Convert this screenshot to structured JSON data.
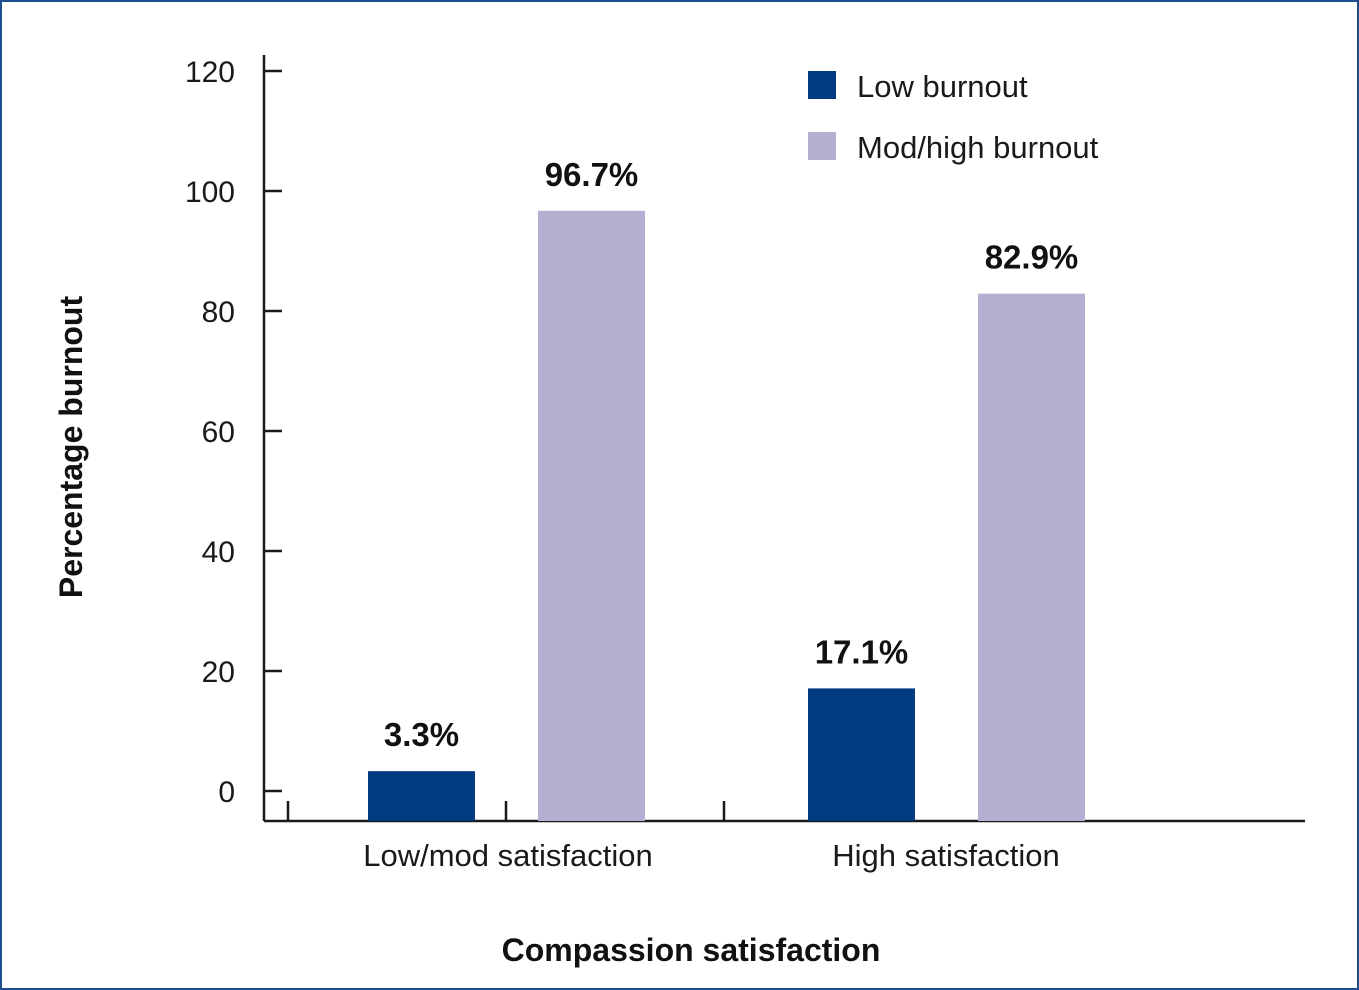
{
  "chart_data": {
    "type": "bar",
    "categories": [
      "Low/mod satisfaction",
      "High satisfaction"
    ],
    "series": [
      {
        "name": "Low burnout",
        "values": [
          3.3,
          17.1
        ],
        "labels": [
          "3.3%",
          "17.1%"
        ],
        "color": "#003a80"
      },
      {
        "name": "Mod/high burnout",
        "values": [
          96.7,
          82.9
        ],
        "labels": [
          "96.7%",
          "82.9%"
        ],
        "color": "#b4b0d1"
      }
    ],
    "xlabel": "Compassion satisfaction",
    "ylabel": "Percentage burnout",
    "ylim": [
      0,
      120
    ],
    "yticks": [
      0,
      20,
      40,
      60,
      80,
      100,
      120
    ],
    "grid": false,
    "legend_position": "top-right"
  }
}
